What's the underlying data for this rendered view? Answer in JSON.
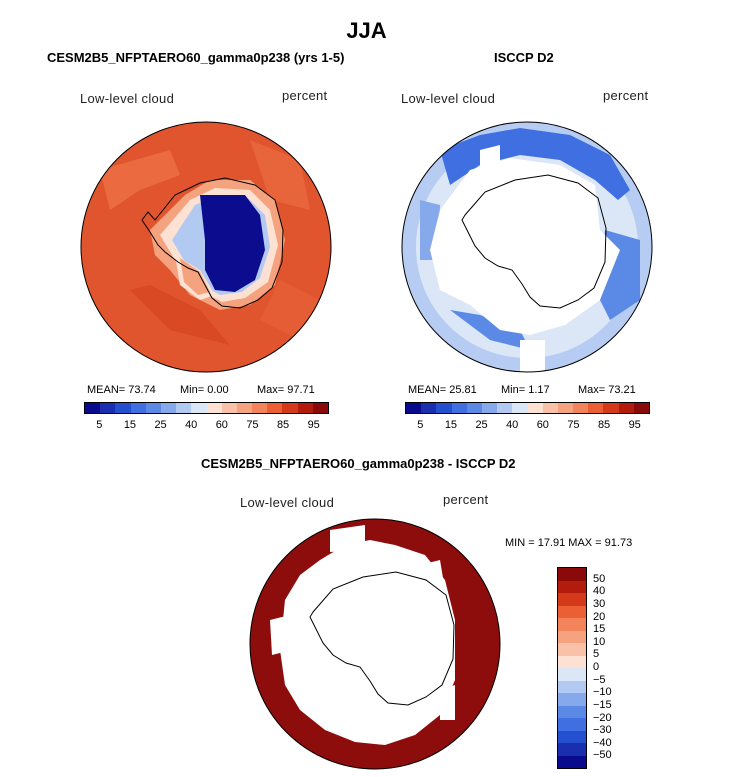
{
  "main_title": "JJA",
  "panels": [
    {
      "title": "CESM2B5_NFPTAERO60_gamma0p238 (yrs 1-5)",
      "variable": "Low-level cloud",
      "units": "percent",
      "mean": "MEAN=   73.74",
      "min": "Min=    0.00",
      "max": "Max=   97.71"
    },
    {
      "title": "ISCCP D2",
      "variable": "Low-level cloud",
      "units": "percent",
      "mean": "MEAN=   25.81",
      "min": "Min=    1.17",
      "max": "Max=   73.21"
    },
    {
      "title": "CESM2B5_NFPTAERO60_gamma0p238 - ISCCP D2",
      "variable": "Low-level cloud",
      "units": "percent",
      "minmax": "MIN =   17.91  MAX =   91.73"
    }
  ],
  "colorbar_abs": {
    "colors": [
      "#0a0a8c",
      "#1a2fb0",
      "#2450d0",
      "#3f6fe0",
      "#5a8ae6",
      "#86a9ec",
      "#b2c9f2",
      "#dbe6f7",
      "#fde1d2",
      "#f9c2a8",
      "#f5a27e",
      "#f2835a",
      "#ec5f34",
      "#d43a1a",
      "#b31c0c",
      "#8a0a0a"
    ],
    "labels": [
      "5",
      "15",
      "25",
      "40",
      "60",
      "75",
      "85",
      "95"
    ]
  },
  "colorbar_diff": {
    "colors": [
      "#8a0a0a",
      "#b31c0c",
      "#d43a1a",
      "#ec5f34",
      "#f2835a",
      "#f5a27e",
      "#f9c2a8",
      "#fde1d2",
      "#dbe6f7",
      "#b2c9f2",
      "#86a9ec",
      "#5a8ae6",
      "#3f6fe0",
      "#2450d0",
      "#1a2fb0",
      "#0a0a8c"
    ],
    "labels": [
      "50",
      "40",
      "30",
      "20",
      "15",
      "10",
      "5",
      "0",
      "−5",
      "−10",
      "−15",
      "−20",
      "−30",
      "−40",
      "−50"
    ]
  },
  "colors": {
    "model_ocean": "#e0552e",
    "model_ice": "#0b0c8e",
    "obs_ocean": "#b7ccf2",
    "obs_edge": "#3f6fe0",
    "diff_ocean": "#8d0c0c",
    "coastline": "#000000"
  }
}
